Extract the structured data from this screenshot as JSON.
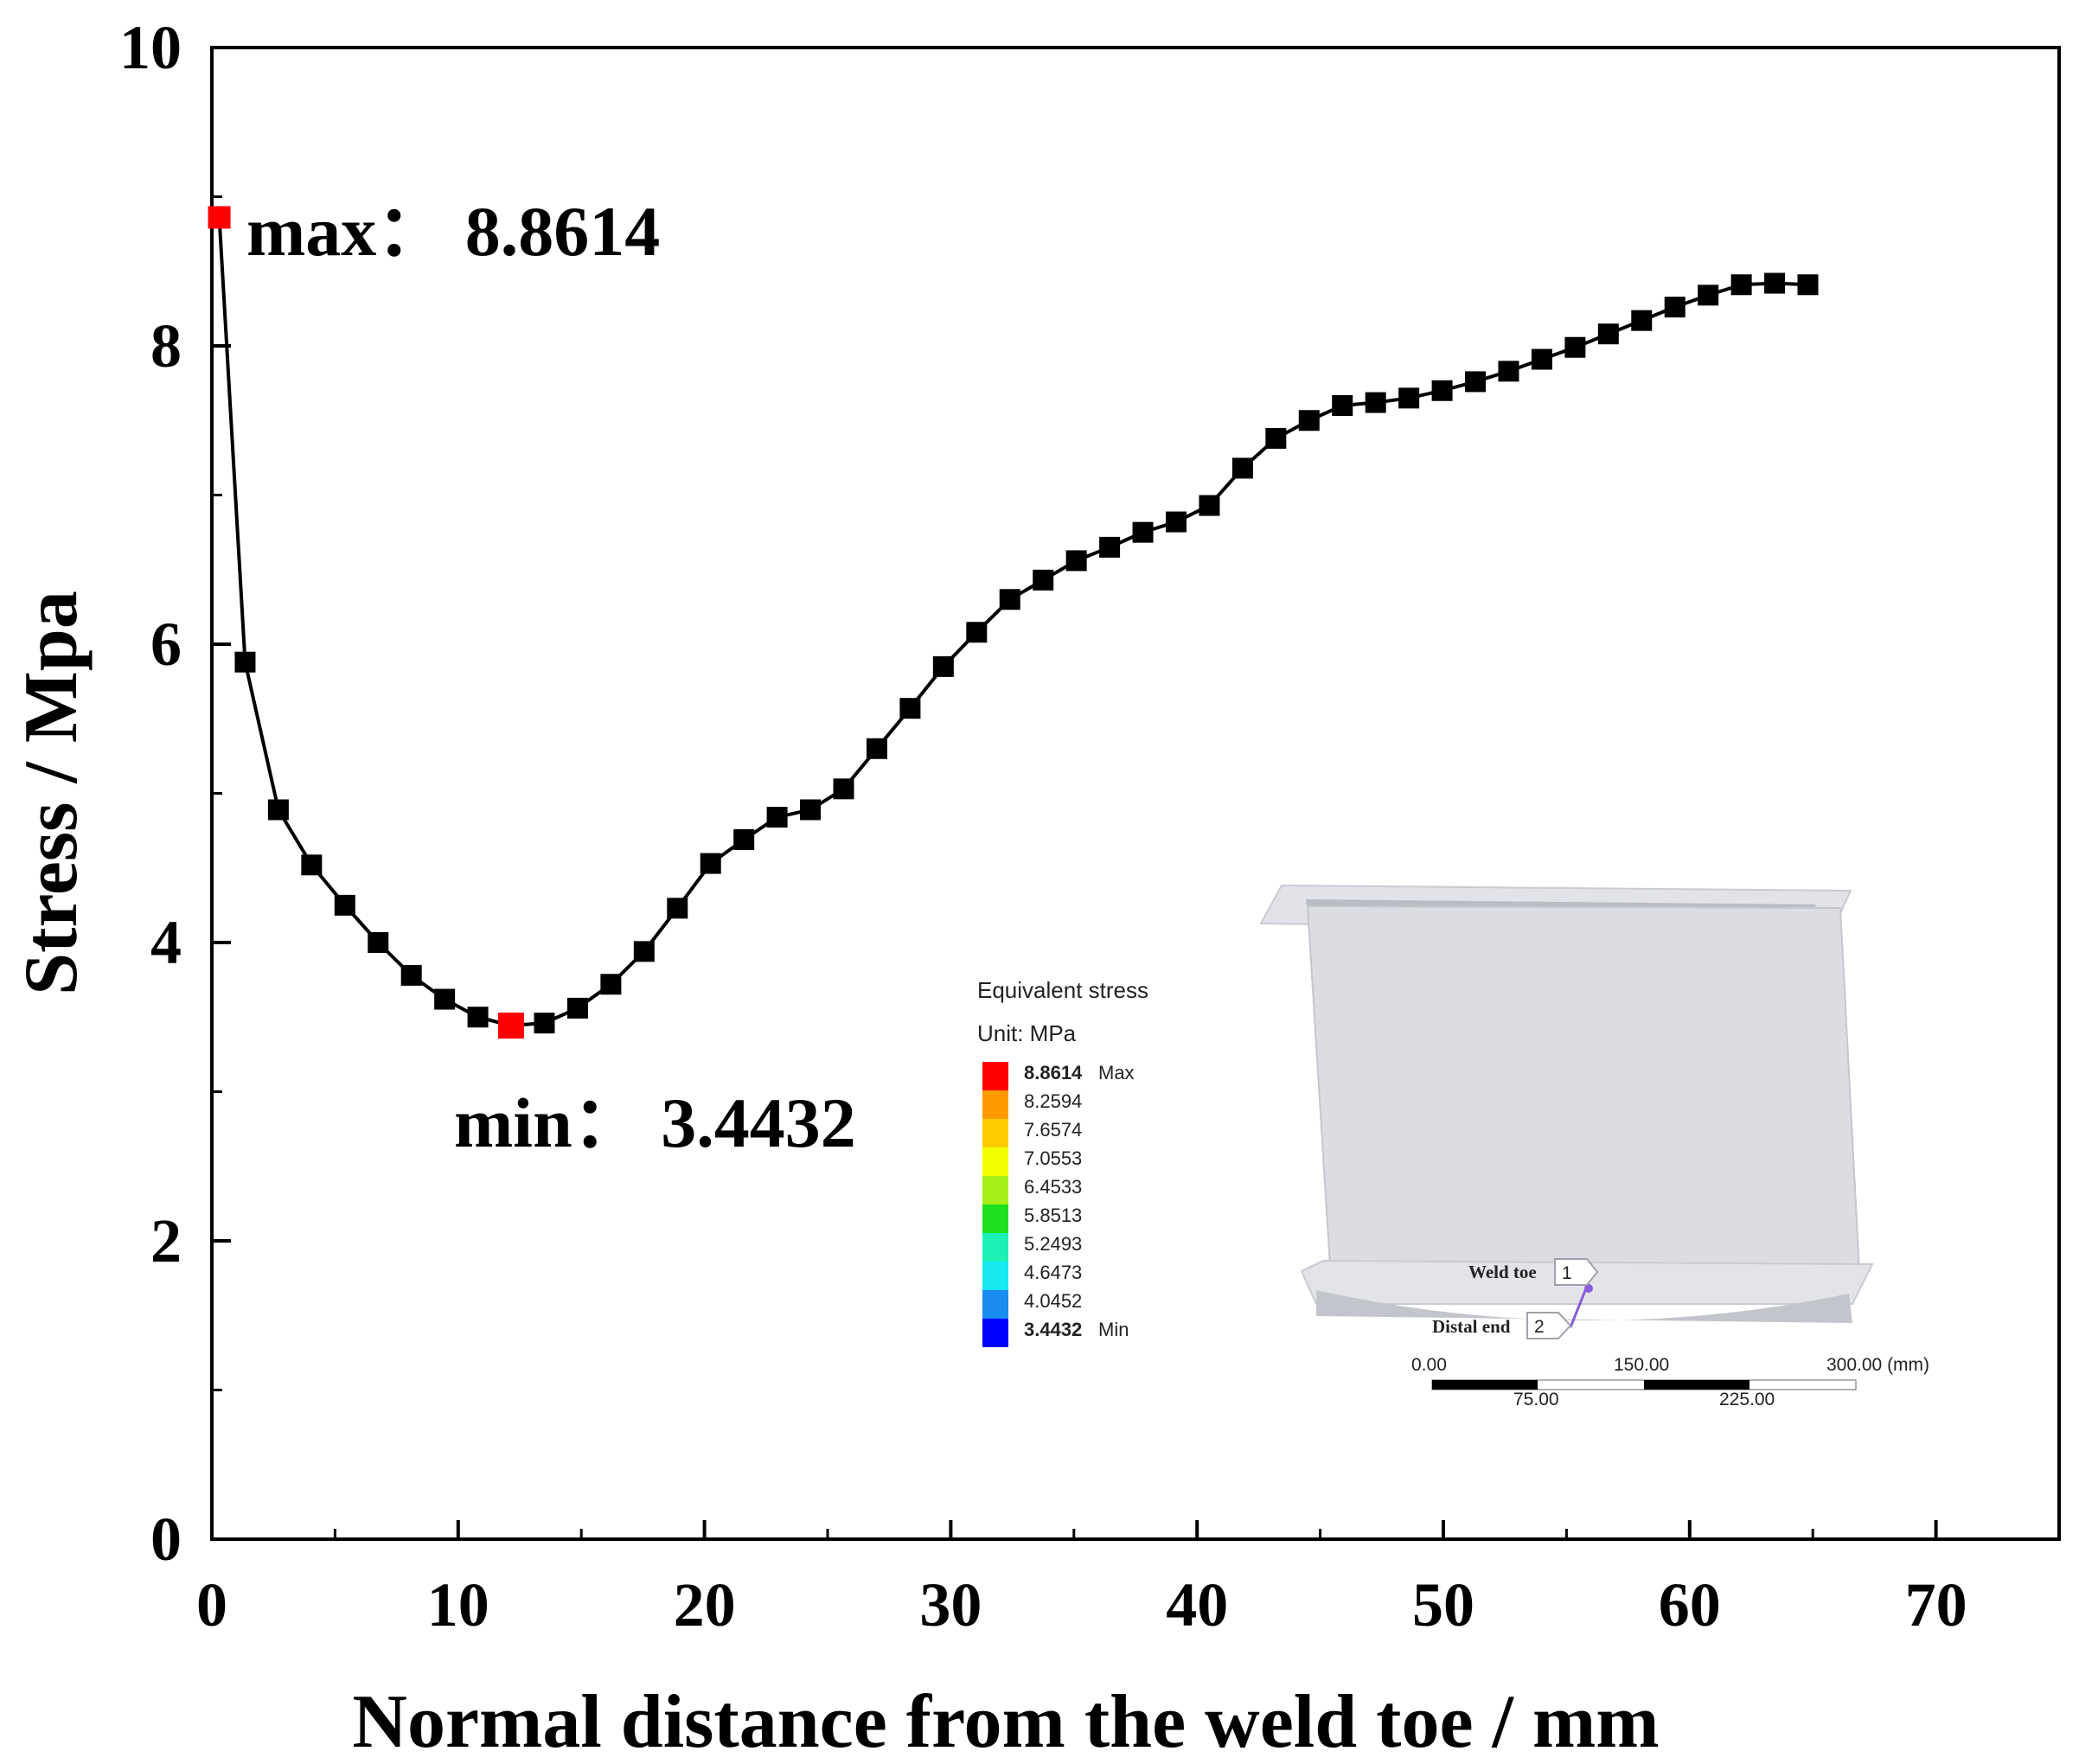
{
  "chart_data": {
    "type": "line",
    "title": "",
    "xlabel": "Normal distance from the weld toe / mm",
    "ylabel": "Stress / Mpa",
    "xlim": [
      0,
      75
    ],
    "ylim": [
      0,
      10
    ],
    "xticks": [
      0,
      10,
      20,
      30,
      40,
      50,
      60,
      70
    ],
    "yticks": [
      0,
      2,
      4,
      6,
      8,
      10
    ],
    "x_tick_labels": [
      "0",
      "10",
      "20",
      "30",
      "40",
      "50",
      "60",
      "70"
    ],
    "y_tick_labels": [
      "0",
      "2",
      "4",
      "6",
      "8",
      "10"
    ],
    "grid": false,
    "legend": "none",
    "series": [
      {
        "name": "Equivalent stress",
        "marker": "square",
        "color": "#000000",
        "x": [
          0.3,
          1.35,
          2.7,
          4.05,
          5.4,
          6.75,
          8.1,
          9.45,
          10.8,
          12.15,
          13.5,
          14.85,
          16.2,
          17.55,
          18.9,
          20.25,
          21.6,
          22.95,
          24.3,
          25.65,
          27.0,
          28.35,
          29.7,
          31.05,
          32.4,
          33.75,
          35.1,
          36.45,
          37.8,
          39.15,
          40.5,
          41.85,
          43.2,
          44.55,
          45.9,
          47.25,
          48.6,
          49.95,
          51.3,
          52.65,
          54.0,
          55.35,
          56.7,
          58.05,
          59.4,
          60.75,
          62.1,
          63.45,
          64.8
        ],
        "values": [
          8.8614,
          5.88,
          4.89,
          4.52,
          4.25,
          4.0,
          3.78,
          3.62,
          3.5,
          3.4432,
          3.46,
          3.56,
          3.72,
          3.94,
          4.23,
          4.53,
          4.69,
          4.84,
          4.89,
          5.03,
          5.3,
          5.57,
          5.85,
          6.08,
          6.3,
          6.43,
          6.56,
          6.65,
          6.75,
          6.82,
          6.93,
          7.18,
          7.38,
          7.5,
          7.6,
          7.62,
          7.65,
          7.7,
          7.76,
          7.83,
          7.91,
          7.99,
          8.08,
          8.17,
          8.26,
          8.34,
          8.41,
          8.42,
          8.41
        ]
      }
    ],
    "highlights": {
      "max": {
        "x": 0.3,
        "value": 8.8614,
        "color": "#ff0000"
      },
      "min": {
        "x": 12.15,
        "value": 3.4432,
        "color": "#ff0000"
      }
    },
    "annotations": {
      "max_label": "max： 8.8614",
      "min_label": "min： 3.4432"
    }
  },
  "inset": {
    "legend_title": "Equivalent stress",
    "legend_unit": "Unit: MPa",
    "legend_levels": [
      {
        "value": "8.8614",
        "suffix": "Max",
        "bold": true,
        "color": "#ff0000"
      },
      {
        "value": "8.2594",
        "suffix": "",
        "bold": false,
        "color": "#ff9a00"
      },
      {
        "value": "7.6574",
        "suffix": "",
        "bold": false,
        "color": "#ffcc00"
      },
      {
        "value": "7.0553",
        "suffix": "",
        "bold": false,
        "color": "#f4ff00"
      },
      {
        "value": "6.4533",
        "suffix": "",
        "bold": false,
        "color": "#a6f01a"
      },
      {
        "value": "5.8513",
        "suffix": "",
        "bold": false,
        "color": "#1ee01e"
      },
      {
        "value": "5.2493",
        "suffix": "",
        "bold": false,
        "color": "#1cf0b8"
      },
      {
        "value": "4.6473",
        "suffix": "",
        "bold": false,
        "color": "#18e8f0"
      },
      {
        "value": "4.0452",
        "suffix": "",
        "bold": false,
        "color": "#1a8cf0"
      },
      {
        "value": "3.4432",
        "suffix": "Min",
        "bold": true,
        "color": "#0000ff"
      }
    ],
    "probe_labels": [
      {
        "text": "Weld toe",
        "index": "1"
      },
      {
        "text": "Distal end",
        "index": "2"
      }
    ],
    "scale_bar": {
      "top_labels": [
        "0.00",
        "150.00",
        "300.00 (mm)"
      ],
      "bottom_labels": [
        "75.00",
        "225.00"
      ]
    }
  }
}
